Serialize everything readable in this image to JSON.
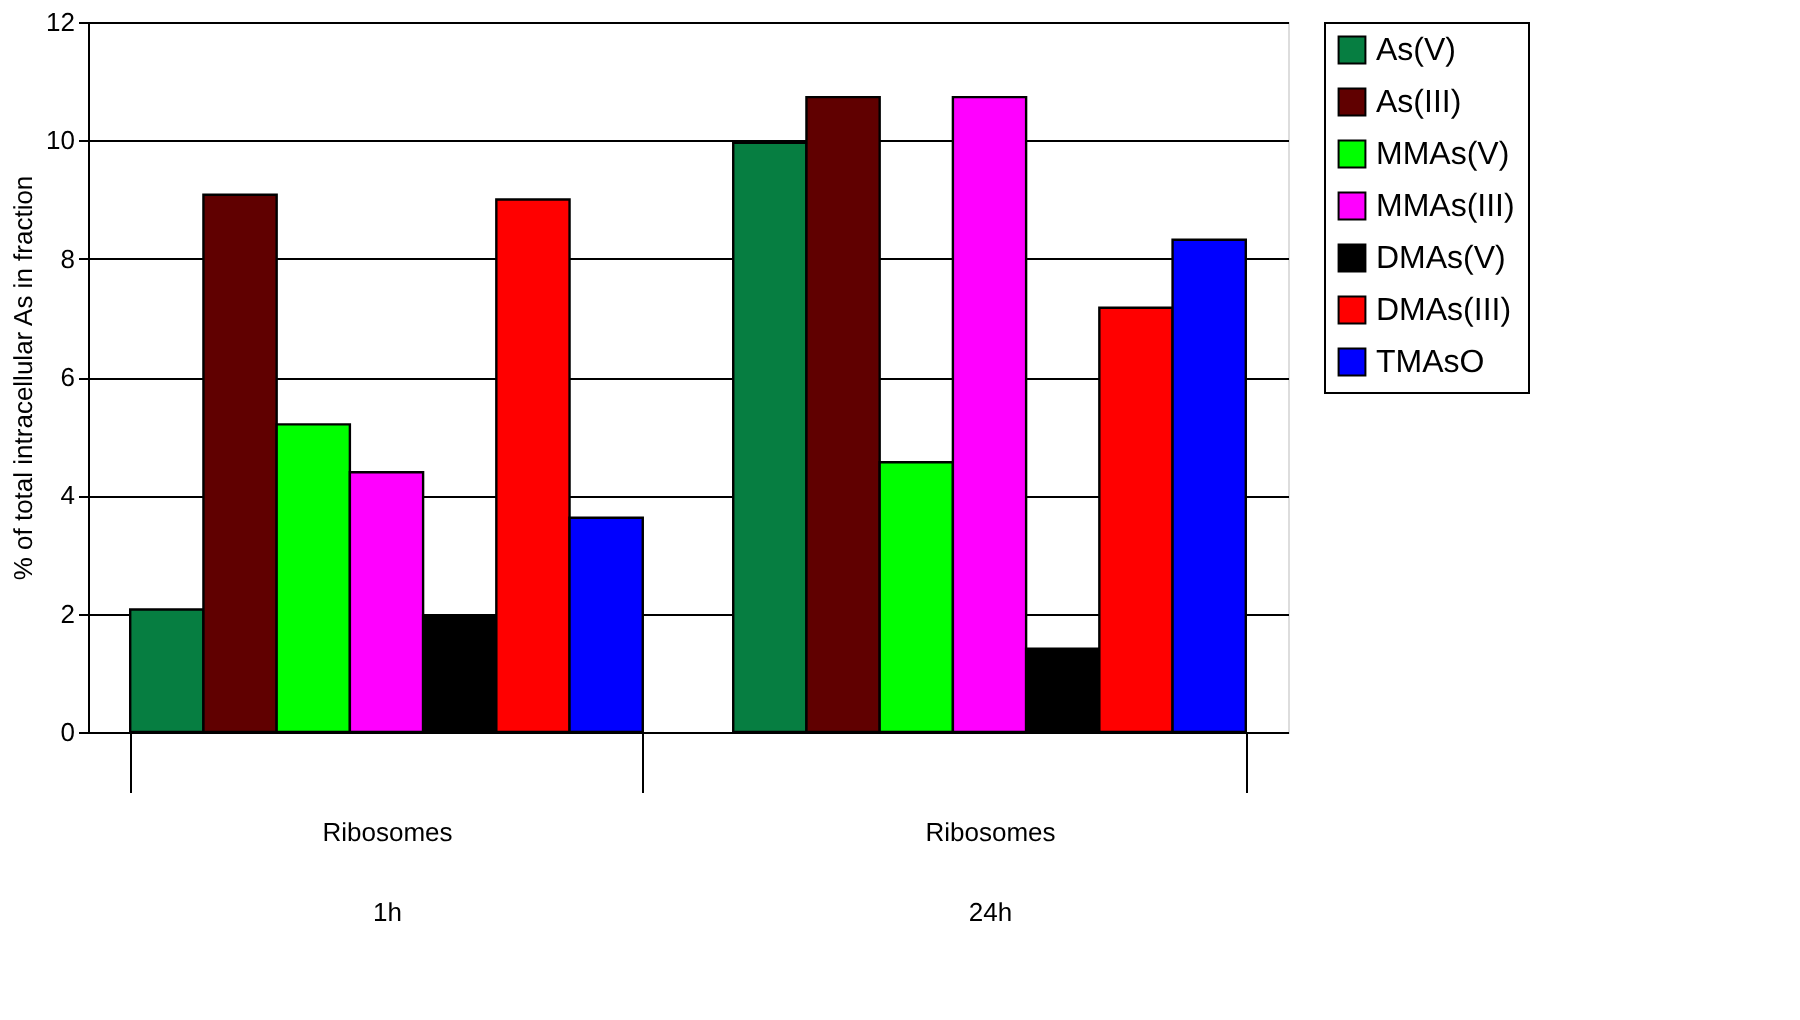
{
  "chart_data": {
    "type": "bar",
    "ylabel": "% of total intracellular As in fraction",
    "categories": [
      "Ribosomes\n1h",
      "Ribosomes\n24h"
    ],
    "series": [
      {
        "name": "As(V)",
        "color": "#067e41",
        "values": [
          2.07,
          9.96
        ]
      },
      {
        "name": "As(III)",
        "color": "#600000",
        "values": [
          9.08,
          10.73
        ]
      },
      {
        "name": "MMAs(V)",
        "color": "#00ff00",
        "values": [
          5.2,
          4.56
        ]
      },
      {
        "name": "MMAs(III)",
        "color": "#ff00ff",
        "values": [
          4.39,
          10.73
        ]
      },
      {
        "name": "DMAs(V)",
        "color": "#000000",
        "values": [
          1.97,
          1.41
        ]
      },
      {
        "name": "DMAs(III)",
        "color": "#ff0000",
        "values": [
          9.0,
          7.17
        ]
      },
      {
        "name": "TMAsO",
        "color": "#0000ff",
        "values": [
          3.62,
          8.32
        ]
      }
    ],
    "ylim": [
      0,
      12
    ],
    "yticks": [
      0,
      2,
      4,
      6,
      8,
      10,
      12
    ],
    "grid": "y",
    "legend": "right"
  }
}
